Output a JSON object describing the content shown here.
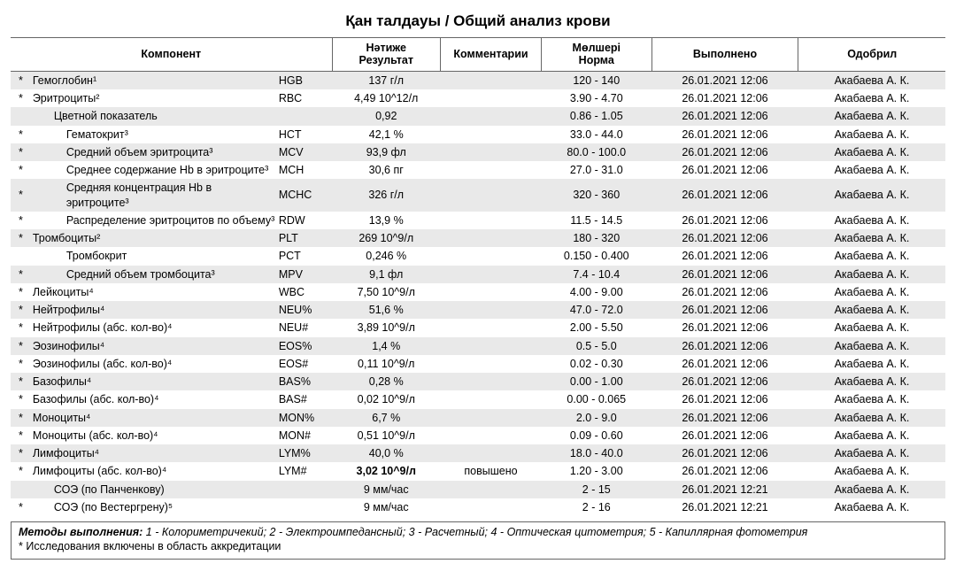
{
  "title": "Қан  талдауы / Общий анализ крови",
  "columns": {
    "component": "Компонент",
    "result": "Нәтиже\nРезультат",
    "comments": "Комментарии",
    "norm": "Мөлшері\nНорма",
    "performed": "Выполнено",
    "approved": "Одобрил"
  },
  "rows": [
    {
      "stripe": true,
      "star": "*",
      "indent": 0,
      "name": "Гемоглобин¹",
      "abbr": "HGB",
      "result": "137 г/л",
      "comment": "",
      "norm": "120 - 140",
      "date": "26.01.2021 12:06",
      "appr": "Акабаева А. К."
    },
    {
      "stripe": false,
      "star": "*",
      "indent": 0,
      "name": "Эритроциты²",
      "abbr": "RBC",
      "result": "4,49 10^12/л",
      "comment": "",
      "norm": "3.90 - 4.70",
      "date": "26.01.2021 12:06",
      "appr": "Акабаева А. К."
    },
    {
      "stripe": true,
      "star": "",
      "indent": 1,
      "name": "Цветной показатель",
      "abbr": "",
      "result": "0,92",
      "comment": "",
      "norm": "0.86 - 1.05",
      "date": "26.01.2021 12:06",
      "appr": "Акабаева А. К."
    },
    {
      "stripe": false,
      "star": "*",
      "indent": 2,
      "name": "Гематокрит³",
      "abbr": "HCT",
      "result": "42,1 %",
      "comment": "",
      "norm": "33.0 - 44.0",
      "date": "26.01.2021 12:06",
      "appr": "Акабаева А. К."
    },
    {
      "stripe": true,
      "star": "*",
      "indent": 2,
      "name": "Средний объем эритроцита³",
      "abbr": "MCV",
      "result": "93,9 фл",
      "comment": "",
      "norm": "80.0 - 100.0",
      "date": "26.01.2021 12:06",
      "appr": "Акабаева А. К."
    },
    {
      "stripe": false,
      "star": "*",
      "indent": 2,
      "name": "Среднее содержание Hb в эритроците³",
      "abbr": "MCH",
      "result": "30,6 пг",
      "comment": "",
      "norm": "27.0 - 31.0",
      "date": "26.01.2021 12:06",
      "appr": "Акабаева А. К."
    },
    {
      "stripe": true,
      "star": "*",
      "indent": 2,
      "name": "Средняя концентрация Hb в эритроците³",
      "abbr": "MCHC",
      "result": "326 г/л",
      "comment": "",
      "norm": "320 - 360",
      "date": "26.01.2021 12:06",
      "appr": "Акабаева А. К."
    },
    {
      "stripe": false,
      "star": "*",
      "indent": 2,
      "name": "Распределение эритроцитов по объему³",
      "abbr": "RDW",
      "result": "13,9 %",
      "comment": "",
      "norm": "11.5 - 14.5",
      "date": "26.01.2021 12:06",
      "appr": "Акабаева А. К."
    },
    {
      "stripe": true,
      "star": "*",
      "indent": 0,
      "name": "Тромбоциты²",
      "abbr": "PLT",
      "result": "269 10^9/л",
      "comment": "",
      "norm": "180 - 320",
      "date": "26.01.2021 12:06",
      "appr": "Акабаева А. К."
    },
    {
      "stripe": false,
      "star": "",
      "indent": 2,
      "name": "Тромбокрит",
      "abbr": "PCT",
      "result": "0,246 %",
      "comment": "",
      "norm": "0.150 - 0.400",
      "date": "26.01.2021 12:06",
      "appr": "Акабаева А. К."
    },
    {
      "stripe": true,
      "star": "*",
      "indent": 2,
      "name": "Средний объем тромбоцита³",
      "abbr": "MPV",
      "result": "9,1 фл",
      "comment": "",
      "norm": "7.4 - 10.4",
      "date": "26.01.2021 12:06",
      "appr": "Акабаева А. К."
    },
    {
      "stripe": false,
      "star": "*",
      "indent": 0,
      "name": "Лейкоциты⁴",
      "abbr": "WBC",
      "result": "7,50 10^9/л",
      "comment": "",
      "norm": "4.00 - 9.00",
      "date": "26.01.2021 12:06",
      "appr": "Акабаева А. К."
    },
    {
      "stripe": true,
      "star": "*",
      "indent": 0,
      "name": "Нейтрофилы⁴",
      "abbr": "NEU%",
      "result": "51,6 %",
      "comment": "",
      "norm": "47.0 - 72.0",
      "date": "26.01.2021 12:06",
      "appr": "Акабаева А. К."
    },
    {
      "stripe": false,
      "star": "*",
      "indent": 0,
      "name": "Нейтрофилы (абс. кол-во)⁴",
      "abbr": "NEU#",
      "result": "3,89 10^9/л",
      "comment": "",
      "norm": "2.00 - 5.50",
      "date": "26.01.2021 12:06",
      "appr": "Акабаева А. К."
    },
    {
      "stripe": true,
      "star": "*",
      "indent": 0,
      "name": "Эозинофилы⁴",
      "abbr": "EOS%",
      "result": "1,4 %",
      "comment": "",
      "norm": "0.5 - 5.0",
      "date": "26.01.2021 12:06",
      "appr": "Акабаева А. К."
    },
    {
      "stripe": false,
      "star": "*",
      "indent": 0,
      "name": "Эозинофилы (абс. кол-во)⁴",
      "abbr": "EOS#",
      "result": "0,11 10^9/л",
      "comment": "",
      "norm": "0.02 - 0.30",
      "date": "26.01.2021 12:06",
      "appr": "Акабаева А. К."
    },
    {
      "stripe": true,
      "star": "*",
      "indent": 0,
      "name": "Базофилы⁴",
      "abbr": "BAS%",
      "result": "0,28 %",
      "comment": "",
      "norm": "0.00 - 1.00",
      "date": "26.01.2021 12:06",
      "appr": "Акабаева А. К."
    },
    {
      "stripe": false,
      "star": "*",
      "indent": 0,
      "name": "Базофилы (абс. кол-во)⁴",
      "abbr": "BAS#",
      "result": "0,02 10^9/л",
      "comment": "",
      "norm": "0.00 - 0.065",
      "date": "26.01.2021 12:06",
      "appr": "Акабаева А. К."
    },
    {
      "stripe": true,
      "star": "*",
      "indent": 0,
      "name": "Моноциты⁴",
      "abbr": "MON%",
      "result": "6,7 %",
      "comment": "",
      "norm": "2.0 - 9.0",
      "date": "26.01.2021 12:06",
      "appr": "Акабаева А. К."
    },
    {
      "stripe": false,
      "star": "*",
      "indent": 0,
      "name": "Моноциты (абс. кол-во)⁴",
      "abbr": "MON#",
      "result": "0,51 10^9/л",
      "comment": "",
      "norm": "0.09 - 0.60",
      "date": "26.01.2021 12:06",
      "appr": "Акабаева А. К."
    },
    {
      "stripe": true,
      "star": "*",
      "indent": 0,
      "name": "Лимфоциты⁴",
      "abbr": "LYM%",
      "result": "40,0 %",
      "comment": "",
      "norm": "18.0 - 40.0",
      "date": "26.01.2021 12:06",
      "appr": "Акабаева А. К."
    },
    {
      "stripe": false,
      "star": "*",
      "indent": 0,
      "name": "Лимфоциты (абс. кол-во)⁴",
      "abbr": "LYM#",
      "result": "3,02 10^9/л",
      "comment": "повышено",
      "norm": "1.20 - 3.00",
      "date": "26.01.2021 12:06",
      "appr": "Акабаева А. К.",
      "bold": true
    },
    {
      "stripe": true,
      "star": "",
      "indent": 1,
      "name": "СОЭ (по Панченкову)",
      "abbr": "",
      "result": "9 мм/час",
      "comment": "",
      "norm": "2 - 15",
      "date": "26.01.2021 12:21",
      "appr": "Акабаева А. К."
    },
    {
      "stripe": false,
      "star": "*",
      "indent": 1,
      "name": "СОЭ (по Вестергрену)⁵",
      "abbr": "",
      "result": "9 мм/час",
      "comment": "",
      "norm": "2 - 16",
      "date": "26.01.2021 12:21",
      "appr": "Акабаева А. К."
    }
  ],
  "footnote": {
    "label": "Методы выполнения:",
    "text": " 1 - Колориметричекий; 2 - Электроимпедансный; 3 - Расчетный; 4 - Оптическая цитометрия; 5 - Капиллярная фотометрия",
    "accr": "* Исследования включены в область аккредитации"
  }
}
